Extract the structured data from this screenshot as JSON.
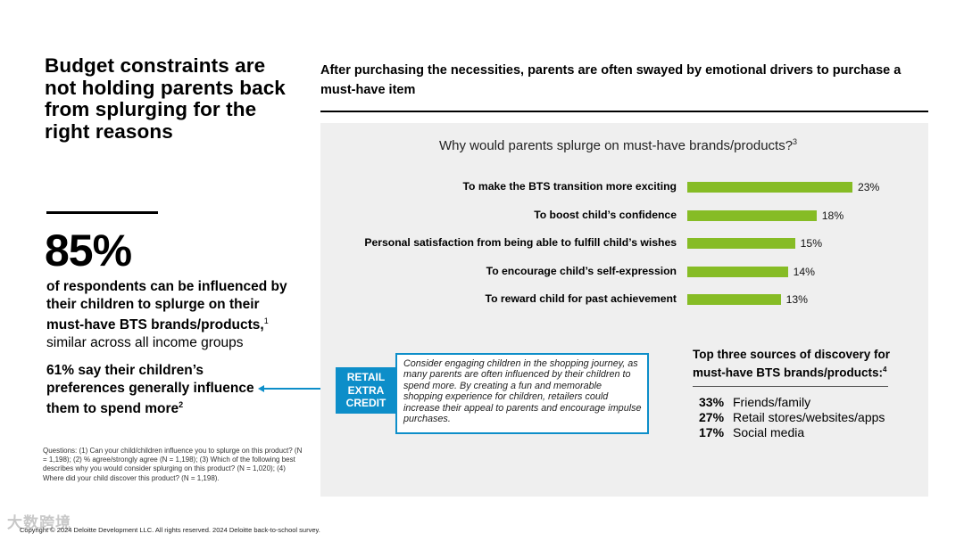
{
  "left": {
    "headline": "Budget constraints are not holding parents back from splurging for the right reasons",
    "big_stat": "85%",
    "stat_desc_bold": "of respondents can be influenced by their children to splurge on their must-have BTS brands/products,",
    "stat_desc_sup": "1",
    "stat_desc_rest": "similar across all income groups",
    "stat2_pct": "61%",
    "stat2_text": "say their children’s preferences generally influence them to spend more",
    "stat2_sup": "2",
    "footnote": "Questions: (1) Can your child/children influence you to splurge on this product? (N = 1,198); (2) % agree/strongly agree (N = 1,198); (3) Which of the following best describes why you would consider splurging on this product? (N = 1,020); (4) Where did your child discover this product? (N = 1,198).",
    "copyright": "Copyright © 2024 Deloitte Development LLC. All rights reserved. 2024 Deloitte back-to-school survey.",
    "watermark": "大数跨境"
  },
  "right": {
    "title": "After purchasing the necessities, parents are often swayed by emotional drivers to purchase a must-have item"
  },
  "chart_data": {
    "type": "bar",
    "orientation": "horizontal",
    "title": "Why would parents splurge on must-have brands/products?",
    "title_sup": "3",
    "categories": [
      "To make the BTS transition more exciting",
      "To boost child’s confidence",
      "Personal satisfaction from being able to fulfill child’s wishes",
      "To encourage child’s self-expression",
      "To reward child for past achievement"
    ],
    "values": [
      23,
      18,
      15,
      14,
      13
    ],
    "value_labels": [
      "23%",
      "18%",
      "15%",
      "14%",
      "13%"
    ],
    "unit": "%",
    "xlim": [
      0,
      23
    ],
    "color": "#86bc25"
  },
  "retail": {
    "badge_line1": "RETAIL",
    "badge_line2": "EXTRA",
    "badge_line3": "CREDIT",
    "text": "Consider engaging children in the shopping journey, as many parents are often influenced by their children to spend more. By creating a fun and memorable shopping experience for children, retailers could increase their appeal to parents and encourage impulse purchases.",
    "accent": "#0d8ec9"
  },
  "discovery": {
    "title": "Top three sources of discovery for must-have BTS brands/products:",
    "title_sup": "4",
    "items": [
      {
        "pct": "33%",
        "label": "Friends/family"
      },
      {
        "pct": "27%",
        "label": "Retail stores/websites/apps"
      },
      {
        "pct": "17%",
        "label": "Social media"
      }
    ]
  }
}
